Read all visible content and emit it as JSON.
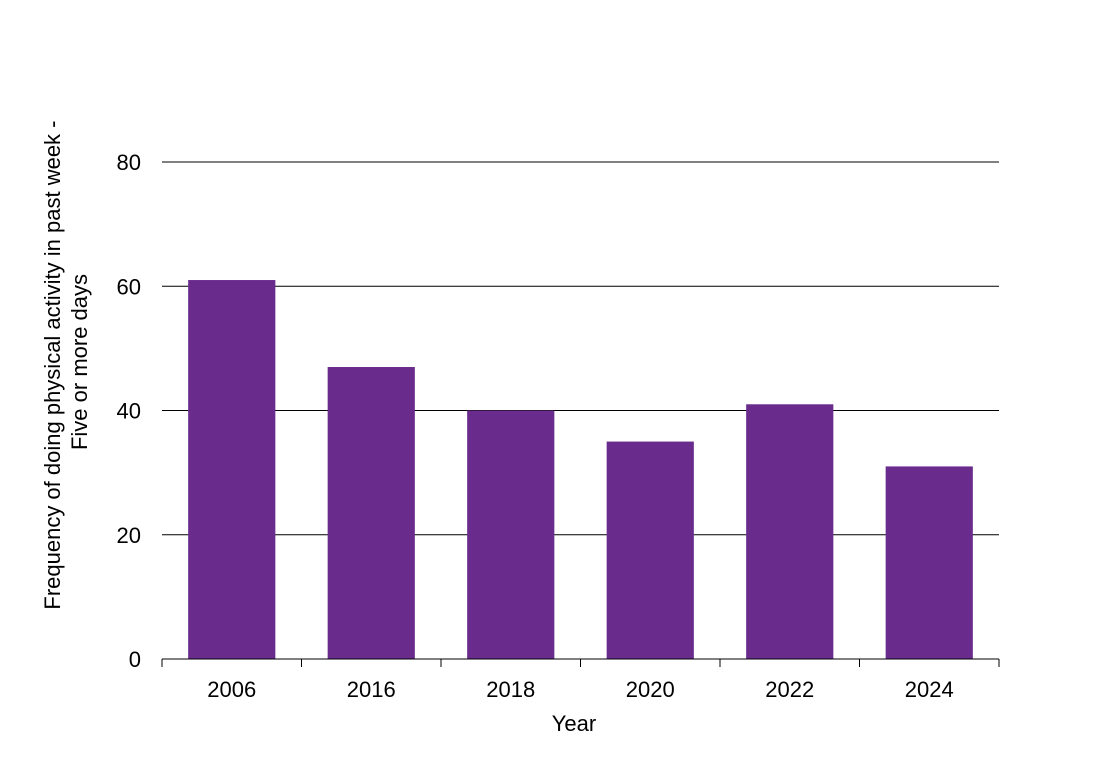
{
  "chart_data": {
    "type": "bar",
    "title": "",
    "xlabel": "Year",
    "ylabel": [
      "Frequency of doing physical activity in past week -",
      "Five or more days"
    ],
    "categories": [
      "2006",
      "2016",
      "2018",
      "2020",
      "2022",
      "2024"
    ],
    "values": [
      61,
      47,
      40,
      35,
      41,
      31
    ],
    "ylim": [
      0,
      80
    ],
    "yticks": [
      0,
      20,
      40,
      60,
      80
    ],
    "grid": true,
    "legend": "none",
    "colors": {
      "bar": "#6a2c8c",
      "grid": "#000000",
      "axis": "#000000"
    }
  }
}
